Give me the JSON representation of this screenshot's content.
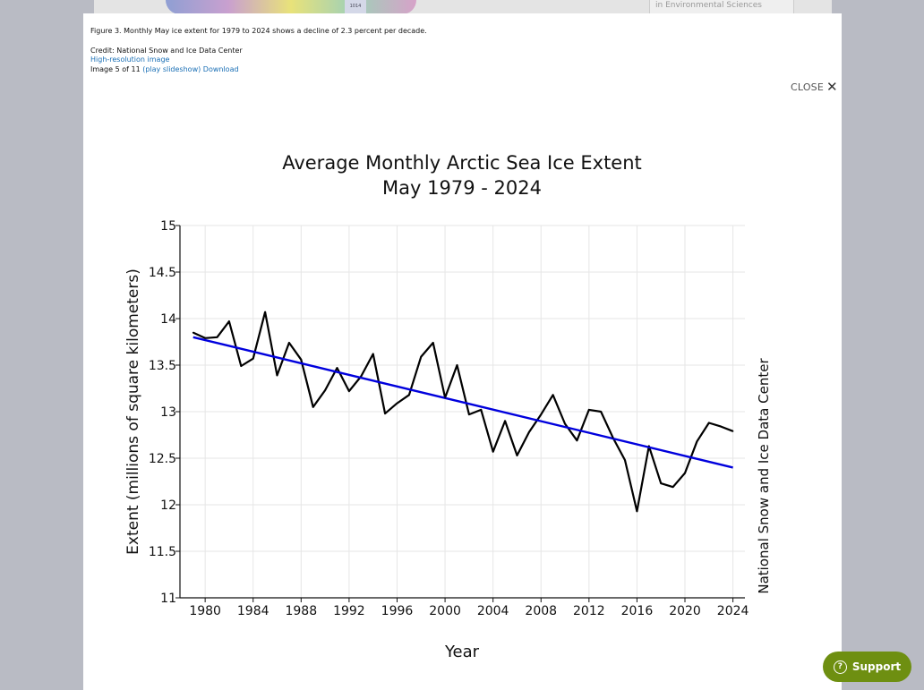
{
  "background": {
    "thumb_label": "1014",
    "sidebar_text": "in Environmental Sciences"
  },
  "caption": {
    "figure_text": "Figure 3. Monthly May ice extent for 1979 to 2024 shows a decline of 2.3 percent per decade.",
    "credit": "Credit: National Snow and Ice Data Center",
    "hires_link": "High-resolution image",
    "image_counter": "Image 5 of 11",
    "slideshow_link": "(play slideshow)",
    "download_link": "Download"
  },
  "close_label": "CLOSE",
  "support_label": "Support",
  "colors": {
    "data_line": "#000000",
    "trend_line": "#0000dd",
    "support": "#6e8f11"
  },
  "chart_data": {
    "type": "line",
    "title": "Average Monthly Arctic Sea Ice Extent",
    "subtitle": "May 1979 - 2024",
    "xlabel": "Year",
    "ylabel": "Extent (millions of square kilometers)",
    "side_label": "National Snow and Ice Data Center",
    "xlim": [
      1977.9,
      2025
    ],
    "ylim": [
      11,
      15
    ],
    "x_ticks": [
      1980,
      1984,
      1988,
      1992,
      1996,
      2000,
      2004,
      2008,
      2012,
      2016,
      2020,
      2024
    ],
    "y_ticks": [
      11,
      11.5,
      12,
      12.5,
      13,
      13.5,
      14,
      14.5,
      15
    ],
    "y_tick_labels": [
      "11",
      "11.5",
      "12",
      "12.5",
      "13",
      "13.5",
      "14",
      "14.5",
      "15"
    ],
    "grid": true,
    "series": [
      {
        "x": [
          1979,
          1980,
          1981,
          1982,
          1983,
          1984,
          1985,
          1986,
          1987,
          1988,
          1989,
          1990,
          1991,
          1992,
          1993,
          1994,
          1995,
          1996,
          1997,
          1998,
          1999,
          2000,
          2001,
          2002,
          2003,
          2004,
          2005,
          2006,
          2007,
          2008,
          2009,
          2010,
          2011,
          2012,
          2013,
          2014,
          2015,
          2016,
          2017,
          2018,
          2019,
          2020,
          2021,
          2022,
          2023,
          2024
        ],
        "y": [
          13.85,
          13.79,
          13.8,
          13.97,
          13.49,
          13.57,
          14.07,
          13.39,
          13.74,
          13.56,
          13.05,
          13.23,
          13.47,
          13.22,
          13.38,
          13.62,
          12.98,
          13.09,
          13.18,
          13.59,
          13.74,
          13.15,
          13.5,
          12.97,
          13.02,
          12.57,
          12.9,
          12.53,
          12.78,
          12.97,
          13.18,
          12.87,
          12.69,
          13.02,
          13.0,
          12.72,
          12.48,
          11.93,
          12.63,
          12.23,
          12.19,
          12.34,
          12.68,
          12.88,
          12.84,
          12.79
        ]
      },
      {
        "x": [
          1979,
          2024
        ],
        "y": [
          13.8,
          12.4
        ]
      }
    ]
  }
}
